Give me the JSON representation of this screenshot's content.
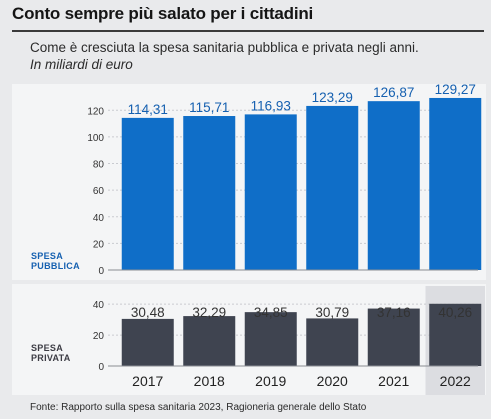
{
  "title": "Conto sempre più salato per i cittadini",
  "subtitle": "Come è cresciuta la spesa sanitaria pubblica e privata negli anni.",
  "unit": "In miliardi di euro",
  "source": "Fonte: Rapporto sulla spesa sanitaria 2023, Ragioneria generale dello Stato",
  "colors": {
    "public_bar": "#0f6ec8",
    "public_label": "#1560b0",
    "private_bar": "#3f4450",
    "private_label": "#3c3c44",
    "highlight_column": "#dcdde1"
  },
  "chart_data": [
    {
      "type": "bar",
      "name": "Spesa pubblica",
      "label_line1": "SPESA",
      "label_line2": "PUBBLICA",
      "categories": [
        "2017",
        "2018",
        "2019",
        "2020",
        "2021",
        "2022"
      ],
      "values": [
        114.31,
        115.71,
        116.93,
        123.29,
        126.87,
        129.27
      ],
      "value_labels": [
        "114,31",
        "115,71",
        "116,93",
        "123,29",
        "126,87",
        "129,27"
      ],
      "ylim": [
        0,
        130
      ],
      "yticks": [
        0,
        20,
        40,
        60,
        80,
        100,
        120
      ],
      "grid": true
    },
    {
      "type": "bar",
      "name": "Spesa privata",
      "label_line1": "SPESA",
      "label_line2": "PRIVATA",
      "categories": [
        "2017",
        "2018",
        "2019",
        "2020",
        "2021",
        "2022"
      ],
      "values": [
        30.48,
        32.29,
        34.85,
        30.79,
        37.16,
        40.26
      ],
      "value_labels": [
        "30,48",
        "32,29",
        "34,85",
        "30,79",
        "37,16",
        "40,26"
      ],
      "ylim": [
        0,
        44
      ],
      "yticks": [
        0,
        20,
        40
      ],
      "grid": true,
      "highlight_category": "2022"
    }
  ]
}
